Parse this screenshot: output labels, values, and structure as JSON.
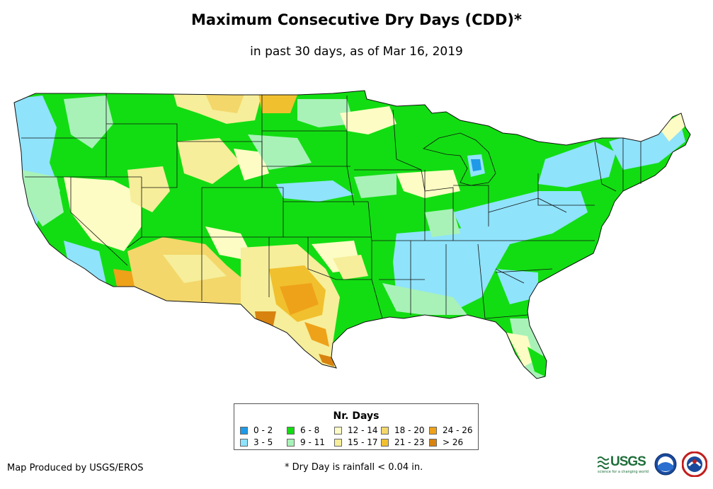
{
  "title": "Maximum Consecutive Dry Days (CDD)*",
  "subtitle": "in past 30 days, as of Mar 16, 2019",
  "legend": {
    "title": "Nr. Days",
    "items": [
      {
        "label": "0 - 2",
        "color": "#1e9ae8"
      },
      {
        "label": "3 - 5",
        "color": "#8fe3fb"
      },
      {
        "label": "6 - 8",
        "color": "#12dd12"
      },
      {
        "label": "9 - 11",
        "color": "#a8f2b8"
      },
      {
        "label": "12 - 14",
        "color": "#fcfcc4"
      },
      {
        "label": "15 - 17",
        "color": "#f6ee9a"
      },
      {
        "label": "18 - 20",
        "color": "#f3d76a"
      },
      {
        "label": "21 - 23",
        "color": "#f1c02e"
      },
      {
        "label": "24 - 26",
        "color": "#eea21a"
      },
      {
        "label": "> 26",
        "color": "#d88310"
      }
    ]
  },
  "credit": "Map Produced by USGS/EROS",
  "footnote": "* Dry Day is rainfall < 0.04 in.",
  "logos": {
    "usgs": "USGS",
    "usgs_tagline": "science for a changing world"
  }
}
